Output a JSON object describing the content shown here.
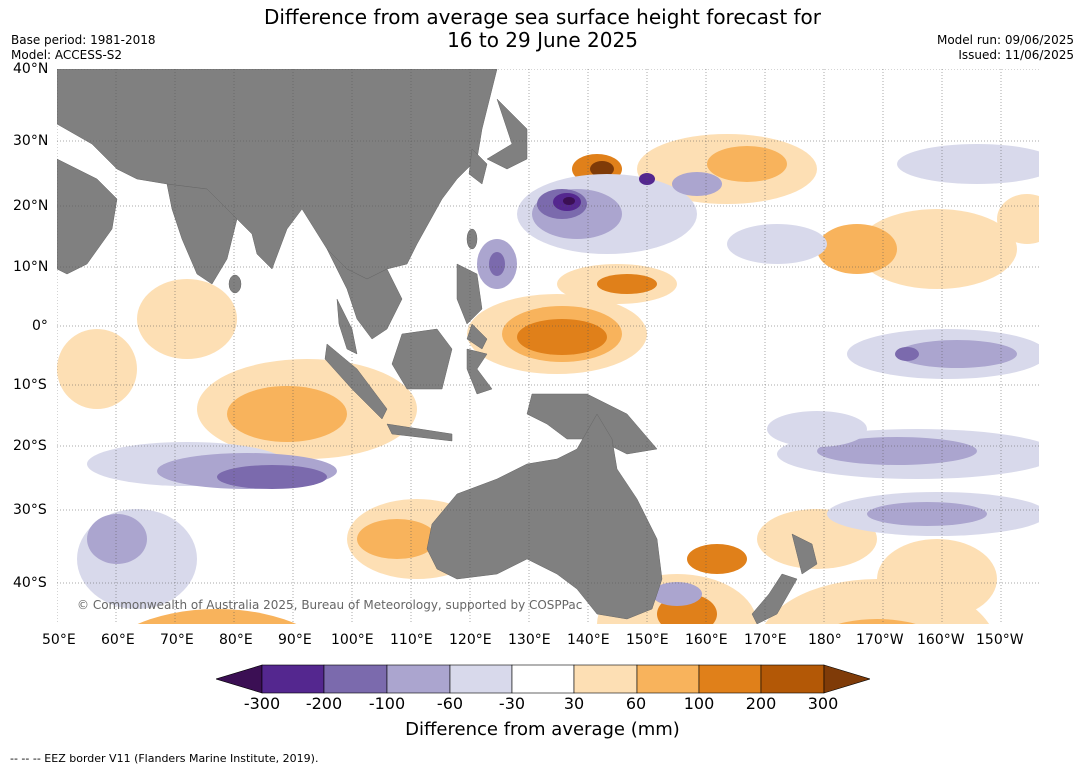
{
  "title": {
    "line1": "Difference from average sea surface height forecast for",
    "line2": "16 to 29 June 2025"
  },
  "meta_left": {
    "base_period": "Base period: 1981-2018",
    "model": "Model: ACCESS-S2"
  },
  "meta_right": {
    "model_run": "Model run: 09/06/2025",
    "issued": "Issued: 11/06/2025"
  },
  "map": {
    "lat_labels": [
      "40°N",
      "30°N",
      "20°N",
      "10°N",
      "0°",
      "10°S",
      "20°S",
      "30°S",
      "40°S"
    ],
    "lon_labels": [
      "50°E",
      "60°E",
      "70°E",
      "80°E",
      "90°E",
      "100°E",
      "110°E",
      "120°E",
      "130°E",
      "140°E",
      "150°E",
      "160°E",
      "170°E",
      "180°",
      "170°W",
      "160°W",
      "150°W"
    ],
    "copyright": "© Commonwealth of Australia 2025, Bureau of Meteorology, supported by COSPPac",
    "land_color": "#808080",
    "ocean_color": "#ffffff"
  },
  "colorbar": {
    "ticks": [
      "-300",
      "-200",
      "-100",
      "-60",
      "-30",
      "30",
      "60",
      "100",
      "200",
      "300"
    ],
    "label": "Difference from average (mm)",
    "colors": [
      "#3b0f54",
      "#54278f",
      "#7b6aad",
      "#aba5cf",
      "#d8d9eb",
      "#ffffff",
      "#fddfb4",
      "#f8b35c",
      "#e0801a",
      "#b35806",
      "#7f3b08"
    ]
  },
  "footer": "--  --  -- EEZ border V11 (Flanders Marine Institute, 2019)."
}
